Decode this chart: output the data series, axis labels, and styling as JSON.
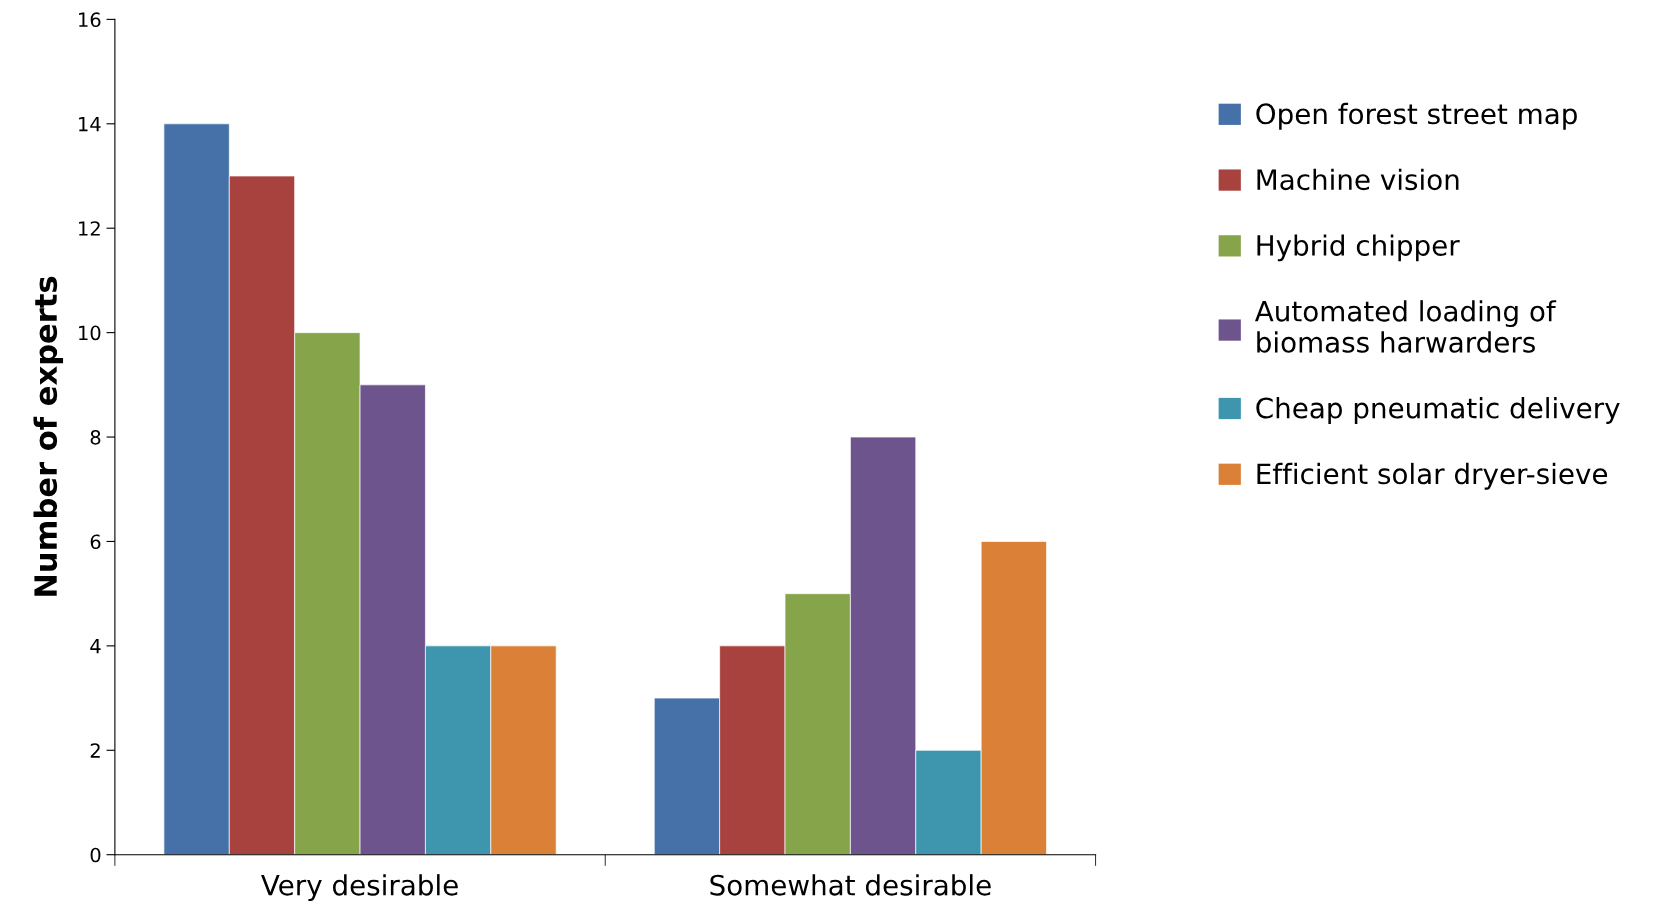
{
  "chart_data": {
    "type": "bar",
    "ylabel": "Number of experts",
    "categories": [
      "Very desirable",
      "Somewhat desirable"
    ],
    "series": [
      {
        "name": "Open forest street map",
        "color": "#4571a8",
        "values": [
          14,
          3
        ]
      },
      {
        "name": "Machine vision",
        "color": "#a8423f",
        "values": [
          13,
          4
        ]
      },
      {
        "name": "Hybrid chipper",
        "color": "#86a44a",
        "values": [
          10,
          5
        ]
      },
      {
        "name": "Automated loading of\nbiomass harwarders",
        "color": "#6e548d",
        "values": [
          9,
          8
        ]
      },
      {
        "name": "Cheap pneumatic delivery",
        "color": "#3d96ae",
        "values": [
          4,
          2
        ]
      },
      {
        "name": "Efficient solar dryer-sieve",
        "color": "#da8137",
        "values": [
          4,
          6
        ]
      }
    ],
    "ylim": [
      0,
      16
    ],
    "yticks": [
      0,
      2,
      4,
      6,
      8,
      10,
      12,
      14,
      16
    ],
    "grid": false,
    "legend": "right"
  }
}
